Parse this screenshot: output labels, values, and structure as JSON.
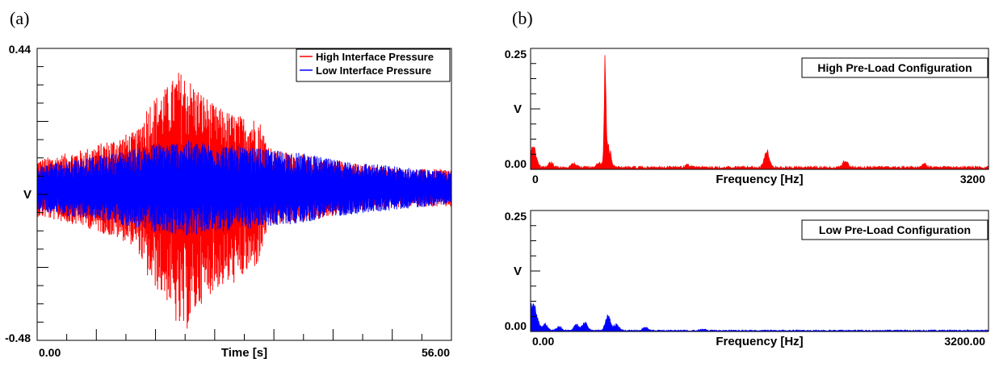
{
  "panel_labels": {
    "a": "(a)",
    "b": "(b)"
  },
  "colors": {
    "high": "#ff0000",
    "low": "#0000ff"
  },
  "chart_data": [
    {
      "type": "line",
      "id": "time-domain",
      "xlabel": "Time [s]",
      "ylabel": "V",
      "xlim": [
        0.0,
        56.0
      ],
      "ylim": [
        -0.48,
        0.44
      ],
      "x_tick_labels": [
        "0.00",
        "56.00"
      ],
      "y_tick_labels": [
        "0.44",
        "-0.48"
      ],
      "legend_position": "top-right",
      "series": [
        {
          "name": "High Interface Pressure",
          "color": "#ff0000",
          "envelope": {
            "t": [
              0,
              6,
              12,
              13.5,
              15,
              18,
              19,
              20,
              22,
              24,
              27,
              30,
              31,
              32,
              35,
              40,
              45,
              50,
              56
            ],
            "upper": [
              0.09,
              0.12,
              0.17,
              0.18,
              0.27,
              0.33,
              0.37,
              0.36,
              0.31,
              0.26,
              0.23,
              0.22,
              0.15,
              0.12,
              0.11,
              0.09,
              0.07,
              0.06,
              0.06
            ],
            "lower": [
              -0.09,
              -0.12,
              -0.17,
              -0.19,
              -0.29,
              -0.37,
              -0.45,
              -0.46,
              -0.37,
              -0.32,
              -0.3,
              -0.24,
              -0.14,
              -0.12,
              -0.11,
              -0.09,
              -0.07,
              -0.06,
              -0.06
            ]
          }
        },
        {
          "name": "Low Interface Pressure",
          "color": "#0000ff",
          "envelope": {
            "t": [
              0,
              4,
              8,
              12,
              16,
              20,
              24,
              28,
              32,
              36,
              40,
              44,
              48,
              52,
              56
            ],
            "upper": [
              0.07,
              0.09,
              0.1,
              0.12,
              0.14,
              0.15,
              0.14,
              0.13,
              0.12,
              0.11,
              0.09,
              0.08,
              0.07,
              0.06,
              0.05
            ],
            "lower": [
              -0.07,
              -0.09,
              -0.1,
              -0.12,
              -0.14,
              -0.15,
              -0.14,
              -0.13,
              -0.12,
              -0.11,
              -0.09,
              -0.08,
              -0.07,
              -0.06,
              -0.05
            ]
          }
        }
      ]
    },
    {
      "type": "area",
      "id": "spectrum-high",
      "title": "High Pre-Load Configuration",
      "xlabel": "Frequency [Hz]",
      "ylabel": "V",
      "xlim": [
        0,
        3200
      ],
      "ylim": [
        0,
        0.26
      ],
      "x_tick_labels": [
        "0",
        "3200"
      ],
      "y_tick_labels": [
        "0.25",
        "0.00"
      ],
      "color": "#ff0000",
      "peaks": [
        {
          "f": 10,
          "v": 0.04
        },
        {
          "f": 30,
          "v": 0.025
        },
        {
          "f": 140,
          "v": 0.012
        },
        {
          "f": 300,
          "v": 0.01
        },
        {
          "f": 480,
          "v": 0.012
        },
        {
          "f": 520,
          "v": 0.26
        },
        {
          "f": 540,
          "v": 0.06
        },
        {
          "f": 1100,
          "v": 0.006
        },
        {
          "f": 1650,
          "v": 0.04
        },
        {
          "f": 2200,
          "v": 0.018
        },
        {
          "f": 2750,
          "v": 0.008
        }
      ],
      "noise_floor": 0.004
    },
    {
      "type": "area",
      "id": "spectrum-low",
      "title": "Low Pre-Load Configuration",
      "xlabel": "Frequency [Hz]",
      "ylabel": "V",
      "xlim": [
        0,
        3200
      ],
      "ylim": [
        0,
        0.26
      ],
      "x_tick_labels": [
        "0.00",
        "3200.00"
      ],
      "y_tick_labels": [
        "0.25",
        "0.00"
      ],
      "color": "#0000ff",
      "peaks": [
        {
          "f": 10,
          "v": 0.06
        },
        {
          "f": 40,
          "v": 0.03
        },
        {
          "f": 100,
          "v": 0.015
        },
        {
          "f": 200,
          "v": 0.01
        },
        {
          "f": 320,
          "v": 0.015
        },
        {
          "f": 380,
          "v": 0.02
        },
        {
          "f": 540,
          "v": 0.035
        },
        {
          "f": 600,
          "v": 0.015
        },
        {
          "f": 800,
          "v": 0.008
        },
        {
          "f": 1200,
          "v": 0.004
        }
      ],
      "noise_floor": 0.002
    }
  ]
}
